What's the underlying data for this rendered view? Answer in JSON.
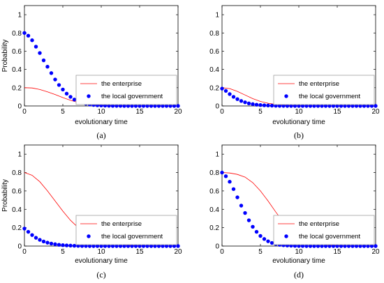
{
  "figure": {
    "colors": {
      "enterprise": "#ff0000",
      "government": "#0000ff",
      "axis": "#000000",
      "legend_border": "#a0a0a0"
    }
  },
  "chart_data": [
    {
      "type": "line",
      "panel": "(a)",
      "xlabel": "evolutionary time",
      "ylabel": "Probability",
      "xlim": [
        0,
        20
      ],
      "ylim": [
        0,
        1.1
      ],
      "xticks": [
        "0",
        "5",
        "10",
        "15",
        "20"
      ],
      "yticks": [
        "0",
        "0.2",
        "0.4",
        "0.6",
        "0.8",
        "1"
      ],
      "legend_position": "lower-right",
      "series": [
        {
          "name": "the enterprise",
          "style": "line",
          "x": [
            0,
            1,
            2,
            3,
            4,
            5,
            6,
            7,
            8,
            9,
            10,
            12,
            14,
            16,
            18,
            20
          ],
          "y": [
            0.2,
            0.197,
            0.18,
            0.155,
            0.125,
            0.092,
            0.062,
            0.038,
            0.022,
            0.012,
            0.006,
            0.002,
            0.001,
            0,
            0,
            0
          ]
        },
        {
          "name": "the local government",
          "style": "dots",
          "x": [
            0,
            0.5,
            1,
            1.5,
            2,
            2.5,
            3,
            3.5,
            4,
            4.5,
            5,
            5.5,
            6,
            6.5,
            7,
            7.5,
            8,
            8.5,
            9,
            9.5,
            10,
            10.5,
            11,
            11.5,
            12,
            12.5,
            13,
            13.5,
            14,
            14.5,
            15,
            15.5,
            16,
            16.5,
            17,
            17.5,
            18,
            18.5,
            19,
            19.5,
            20
          ],
          "y": [
            0.8,
            0.77,
            0.72,
            0.65,
            0.58,
            0.5,
            0.43,
            0.36,
            0.29,
            0.23,
            0.18,
            0.135,
            0.1,
            0.07,
            0.05,
            0.035,
            0.024,
            0.016,
            0.011,
            0.007,
            0.005,
            0.003,
            0.002,
            0.001,
            0.001,
            0.001,
            0,
            0,
            0,
            0,
            0,
            0,
            0,
            0,
            0,
            0,
            0,
            0,
            0,
            0,
            0
          ]
        }
      ]
    },
    {
      "type": "line",
      "panel": "(b)",
      "xlabel": "evolutionary time",
      "ylabel": "",
      "xlim": [
        0,
        20
      ],
      "ylim": [
        0,
        1.1
      ],
      "xticks": [
        "0",
        "5",
        "10",
        "15",
        "20"
      ],
      "yticks": [
        "0",
        "0.2",
        "0.4",
        "0.6",
        "0.8",
        "1"
      ],
      "legend_position": "lower-right",
      "series": [
        {
          "name": "the enterprise",
          "style": "line",
          "x": [
            0,
            1,
            2,
            3,
            4,
            5,
            6,
            7,
            8,
            9,
            10,
            12,
            14,
            16,
            18,
            20
          ],
          "y": [
            0.2,
            0.19,
            0.16,
            0.12,
            0.08,
            0.05,
            0.03,
            0.017,
            0.009,
            0.005,
            0.003,
            0.001,
            0,
            0,
            0,
            0
          ]
        },
        {
          "name": "the local government",
          "style": "dots",
          "x": [
            0,
            0.5,
            1,
            1.5,
            2,
            2.5,
            3,
            3.5,
            4,
            4.5,
            5,
            5.5,
            6,
            6.5,
            7,
            7.5,
            8,
            8.5,
            9,
            9.5,
            10,
            10.5,
            11,
            11.5,
            12,
            12.5,
            13,
            13.5,
            14,
            14.5,
            15,
            15.5,
            16,
            16.5,
            17,
            17.5,
            18,
            18.5,
            19,
            19.5,
            20
          ],
          "y": [
            0.19,
            0.165,
            0.13,
            0.1,
            0.075,
            0.055,
            0.04,
            0.028,
            0.02,
            0.014,
            0.01,
            0.007,
            0.005,
            0.003,
            0.002,
            0.001,
            0.001,
            0,
            0,
            0,
            0,
            0,
            0,
            0,
            0,
            0,
            0,
            0,
            0,
            0,
            0,
            0,
            0,
            0,
            0,
            0,
            0,
            0,
            0,
            0,
            0
          ]
        }
      ]
    },
    {
      "type": "line",
      "panel": "(c)",
      "xlabel": "evolutionary time",
      "ylabel": "Probability",
      "xlim": [
        0,
        20
      ],
      "ylim": [
        0,
        1.1
      ],
      "xticks": [
        "0",
        "5",
        "10",
        "15",
        "20"
      ],
      "yticks": [
        "0",
        "0.2",
        "0.4",
        "0.6",
        "0.8",
        "1"
      ],
      "legend_position": "lower-right",
      "series": [
        {
          "name": "the enterprise",
          "style": "line",
          "x": [
            0,
            1,
            2,
            3,
            4,
            5,
            6,
            7,
            8,
            9,
            10,
            12,
            14,
            16,
            18,
            20
          ],
          "y": [
            0.8,
            0.77,
            0.7,
            0.6,
            0.49,
            0.38,
            0.28,
            0.2,
            0.13,
            0.08,
            0.05,
            0.02,
            0.007,
            0.002,
            0.001,
            0
          ]
        },
        {
          "name": "the local government",
          "style": "dots",
          "x": [
            0,
            0.5,
            1,
            1.5,
            2,
            2.5,
            3,
            3.5,
            4,
            4.5,
            5,
            5.5,
            6,
            6.5,
            7,
            7.5,
            8,
            8.5,
            9,
            9.5,
            10,
            10.5,
            11,
            11.5,
            12,
            12.5,
            13,
            13.5,
            14,
            14.5,
            15,
            15.5,
            16,
            16.5,
            17,
            17.5,
            18,
            18.5,
            19,
            19.5,
            20
          ],
          "y": [
            0.19,
            0.155,
            0.12,
            0.09,
            0.068,
            0.05,
            0.037,
            0.027,
            0.02,
            0.014,
            0.01,
            0.007,
            0.005,
            0.003,
            0.002,
            0.001,
            0.001,
            0,
            0,
            0,
            0,
            0,
            0,
            0,
            0,
            0,
            0,
            0,
            0,
            0,
            0,
            0,
            0,
            0,
            0,
            0,
            0,
            0,
            0,
            0,
            0
          ]
        }
      ]
    },
    {
      "type": "line",
      "panel": "(d)",
      "xlabel": "evolutionary time",
      "ylabel": "",
      "xlim": [
        0,
        20
      ],
      "ylim": [
        0,
        1.1
      ],
      "xticks": [
        "0",
        "5",
        "10",
        "15",
        "20"
      ],
      "yticks": [
        "0",
        "0.2",
        "0.4",
        "0.6",
        "0.8",
        "1"
      ],
      "legend_position": "lower-right",
      "series": [
        {
          "name": "the enterprise",
          "style": "line",
          "x": [
            0,
            1,
            2,
            3,
            4,
            5,
            6,
            7,
            8,
            9,
            10,
            11,
            12,
            14,
            16,
            18,
            20
          ],
          "y": [
            0.8,
            0.795,
            0.78,
            0.75,
            0.69,
            0.6,
            0.49,
            0.37,
            0.26,
            0.17,
            0.1,
            0.058,
            0.032,
            0.01,
            0.003,
            0.001,
            0
          ]
        },
        {
          "name": "the local government",
          "style": "dots",
          "x": [
            0,
            0.5,
            1,
            1.5,
            2,
            2.5,
            3,
            3.5,
            4,
            4.5,
            5,
            5.5,
            6,
            6.5,
            7,
            7.5,
            8,
            8.5,
            9,
            9.5,
            10,
            10.5,
            11,
            11.5,
            12,
            12.5,
            13,
            13.5,
            14,
            14.5,
            15,
            15.5,
            16,
            16.5,
            17,
            17.5,
            18,
            18.5,
            19,
            19.5,
            20
          ],
          "y": [
            0.8,
            0.76,
            0.7,
            0.62,
            0.53,
            0.44,
            0.36,
            0.28,
            0.21,
            0.155,
            0.11,
            0.077,
            0.052,
            0.034,
            0.022,
            0.014,
            0.009,
            0.006,
            0.004,
            0.002,
            0.001,
            0.001,
            0,
            0,
            0,
            0,
            0,
            0,
            0,
            0,
            0,
            0,
            0,
            0,
            0,
            0,
            0,
            0,
            0,
            0,
            0
          ]
        }
      ]
    }
  ]
}
